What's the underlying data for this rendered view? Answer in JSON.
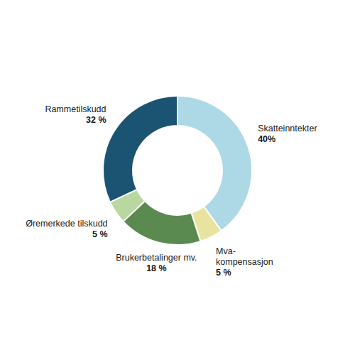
{
  "chart_data": {
    "type": "pie",
    "categories": [
      "Skatteinntekter",
      "Mva-\nkompensasjon",
      "Brukerbetalinger mv.",
      "Øremerkede tilskudd",
      "Rammetilskudd"
    ],
    "values": [
      40,
      5,
      18,
      5,
      32
    ],
    "value_labels": [
      "40%",
      "5 %",
      "18 %",
      "5 %",
      "32 %"
    ],
    "data_labels": true,
    "colors": [
      "#add8e6",
      "#e8e4a0",
      "#5a8a50",
      "#b8d8a0",
      "#1a5472"
    ]
  }
}
